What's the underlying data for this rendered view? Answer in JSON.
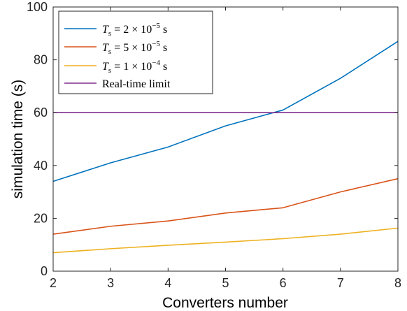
{
  "chart_data": {
    "type": "line",
    "title": "",
    "xlabel": "Converters number",
    "ylabel": "simulation time (s)",
    "xlim": [
      2,
      8
    ],
    "ylim": [
      0,
      100
    ],
    "x": [
      2,
      3,
      4,
      5,
      6,
      7,
      8
    ],
    "xticks": [
      "2",
      "3",
      "4",
      "5",
      "6",
      "7",
      "8"
    ],
    "yticks": [
      "0",
      "20",
      "40",
      "60",
      "80",
      "100"
    ],
    "grid": false,
    "legend_position": "top-left",
    "series": [
      {
        "name": "T_s = 2 × 10^-5 s",
        "color": "#0072BD",
        "values": [
          34,
          41,
          47,
          55,
          61,
          73,
          87
        ]
      },
      {
        "name": "T_s = 5 × 10^-5 s",
        "color": "#D95319",
        "values": [
          14,
          17,
          19,
          22,
          24,
          30,
          35
        ]
      },
      {
        "name": "T_s = 1 × 10^-4 s",
        "color": "#EDB120",
        "values": [
          7,
          8.5,
          9.8,
          11,
          12.3,
          14,
          16.3
        ]
      },
      {
        "name": "Real-time limit",
        "color": "#7E2F8E",
        "values": [
          60,
          60,
          60,
          60,
          60,
          60,
          60
        ]
      }
    ]
  }
}
